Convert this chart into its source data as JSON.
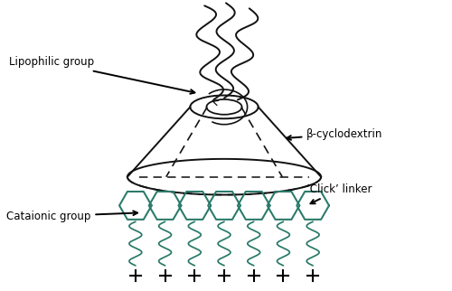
{
  "background_color": "#ffffff",
  "labels": {
    "lipophilic": "Lipophilic group",
    "beta_cd": "β-cyclodextrin",
    "click": "’Click’ linker",
    "cataionic": "Cataionic group"
  },
  "colors": {
    "main": "#111111",
    "teal": "#2a7a6a",
    "black": "#000000"
  },
  "figsize": [
    5.0,
    3.22
  ],
  "dpi": 100
}
